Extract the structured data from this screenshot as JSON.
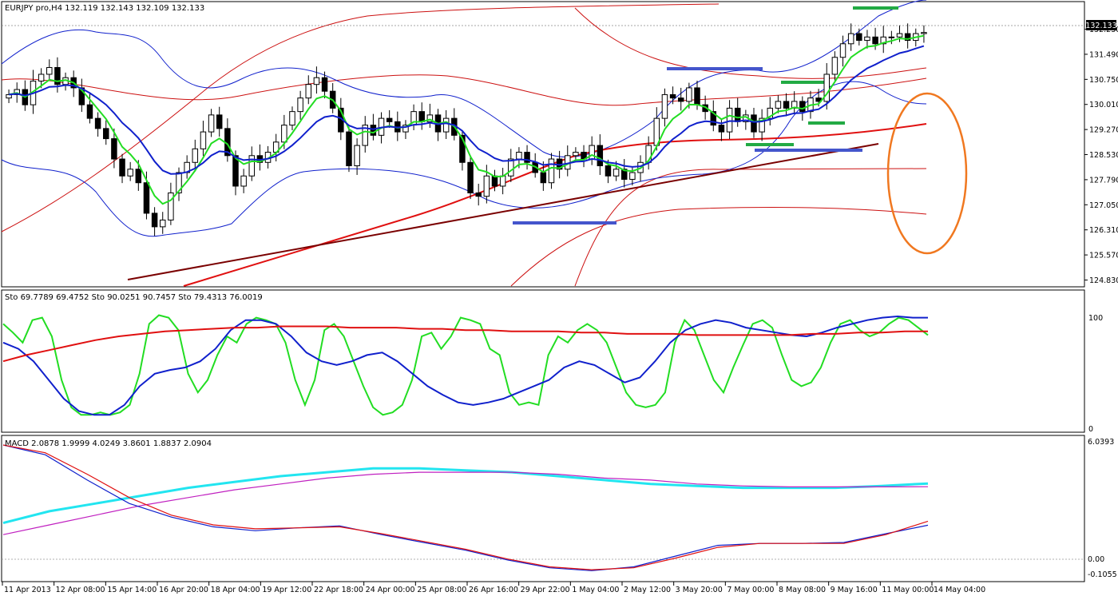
{
  "window": {
    "symbol_info": "EURJPY pro,H4  132.119 132.143 132.109 132.133"
  },
  "colors": {
    "bull_candle": "#ffffff",
    "bear_candle": "#000000",
    "ema_fast": "#22dd22",
    "ema_slow": "#1020cc",
    "ma_long": "#e01010",
    "bands_blue": "#1020cc",
    "bands_red": "#cc1010",
    "trendline": "#7a0000",
    "level_blue": "#4455cc",
    "level_green": "#22aa44",
    "ellipse": "#f07820",
    "macd_signal_cyan": "#22e5f0",
    "macd_main_magenta": "#c020c0"
  },
  "chart_data": [
    {
      "type": "candlestick",
      "title": "EURJPY pro,H4",
      "ohlc_current": {
        "open": 132.119,
        "high": 132.143,
        "low": 132.109,
        "close": 132.133
      },
      "price_axis_ticks": [
        "132.230",
        "131.490",
        "130.750",
        "130.010",
        "129.270",
        "128.530",
        "127.790",
        "127.050",
        "126.310",
        "125.570",
        "124.830"
      ],
      "current_price_label": "132.133",
      "ylim": [
        124.7,
        132.95
      ],
      "x_tick_labels": [
        "11 Apr 2013",
        "12 Apr 08:00",
        "15 Apr 14:00",
        "16 Apr 20:00",
        "18 Apr 04:00",
        "19 Apr 12:00",
        "22 Apr 18:00",
        "24 Apr 00:00",
        "25 Apr 08:00",
        "26 Apr 16:00",
        "29 Apr 22:00",
        "1 May 04:00",
        "2 May 12:00",
        "3 May 20:00",
        "7 May 00:00",
        "8 May 08:00",
        "9 May 16:00",
        "11 May 00:00",
        "14 May 04:00"
      ],
      "close_path": [
        130.3,
        130.45,
        130.0,
        130.7,
        130.9,
        131.1,
        130.6,
        130.8,
        130.5,
        130.0,
        129.6,
        129.3,
        129.0,
        128.4,
        127.9,
        128.1,
        127.7,
        126.8,
        126.4,
        126.6,
        127.4,
        128.0,
        128.3,
        128.7,
        129.2,
        129.7,
        129.3,
        128.5,
        127.6,
        127.9,
        128.5,
        128.3,
        128.6,
        128.9,
        129.4,
        129.8,
        130.2,
        130.6,
        130.8,
        130.4,
        129.9,
        129.2,
        128.2,
        128.8,
        129.4,
        129.1,
        129.6,
        129.5,
        129.2,
        129.4,
        129.8,
        129.5,
        129.7,
        129.2,
        129.6,
        129.1,
        128.3,
        127.4,
        127.3,
        127.9,
        127.6,
        127.9,
        128.4,
        128.6,
        128.3,
        128.0,
        127.7,
        128.4,
        128.1,
        128.5,
        128.6,
        128.4,
        128.8,
        128.2,
        127.9,
        128.1,
        127.8,
        128.0,
        128.3,
        128.8,
        129.6,
        130.3,
        130.2,
        130.1,
        130.5,
        130.0,
        129.8,
        129.4,
        129.2,
        129.9,
        129.5,
        129.7,
        129.2,
        129.6,
        129.9,
        130.1,
        129.9,
        130.1,
        129.8,
        130.2,
        130.1,
        130.9,
        131.4,
        131.8,
        132.1,
        131.9,
        132.0,
        131.8,
        132.0,
        132.0,
        132.1,
        131.9,
        132.1,
        132.133
      ],
      "annotations": [
        "support trendline",
        "blue horizontal levels",
        "green horizontal levels",
        "orange ellipse"
      ]
    },
    {
      "type": "line",
      "title": "Stochastic",
      "legend_text": "Sto 69.7789 69.4752  Sto 90.0251 90.7457  Sto 79.4313 76.0019",
      "ylim": [
        0,
        100
      ],
      "axis_labels": [
        "100",
        "0"
      ],
      "series": [
        {
          "color": "#22dd22",
          "values": [
            85,
            78,
            70,
            88,
            90,
            75,
            40,
            18,
            12,
            12,
            14,
            12,
            14,
            20,
            45,
            85,
            92,
            90,
            80,
            45,
            30,
            40,
            60,
            75,
            70,
            85,
            90,
            88,
            85,
            70,
            40,
            20,
            40,
            80,
            85,
            75,
            55,
            35,
            18,
            12,
            14,
            20,
            40,
            75,
            78,
            65,
            75,
            90,
            88,
            85,
            65,
            60,
            30,
            20,
            22,
            20,
            60,
            75,
            70,
            80,
            85,
            80,
            70,
            50,
            30,
            20,
            18,
            20,
            30,
            70,
            88,
            80,
            60,
            40,
            30,
            50,
            68,
            85,
            88,
            82,
            60,
            40,
            35,
            38,
            50,
            70,
            85,
            88,
            80,
            75,
            78,
            85,
            90,
            88,
            82,
            76
          ]
        },
        {
          "color": "#1020cc",
          "values": [
            70,
            65,
            55,
            40,
            25,
            15,
            12,
            12,
            20,
            35,
            45,
            48,
            50,
            55,
            65,
            80,
            88,
            88,
            85,
            75,
            62,
            55,
            52,
            55,
            60,
            62,
            55,
            45,
            35,
            28,
            22,
            20,
            22,
            25,
            30,
            35,
            40,
            50,
            55,
            52,
            45,
            38,
            42,
            55,
            70,
            80,
            85,
            88,
            86,
            82,
            80,
            78,
            76,
            75,
            78,
            82,
            85,
            88,
            90,
            91,
            90,
            90
          ]
        },
        {
          "color": "#e01010",
          "values": [
            55,
            60,
            64,
            68,
            72,
            75,
            77,
            79,
            80,
            81,
            82,
            82,
            83,
            83,
            83,
            82,
            82,
            82,
            81,
            81,
            80,
            80,
            79,
            79,
            79,
            78,
            78,
            77,
            77,
            77,
            76,
            76,
            76,
            76,
            76,
            77,
            77,
            78,
            78,
            79,
            79
          ]
        }
      ]
    },
    {
      "type": "line",
      "title": "MACD",
      "legend_text": "MACD 2.0878 1.9999 4.0249 3.8601 1.8837 2.0904",
      "axis_labels": [
        "6.0393",
        "0.00",
        "-0.1055"
      ],
      "ylim": [
        -0.6,
        6.0393
      ],
      "series": [
        {
          "color": "#22e5f0",
          "values": [
            2.0,
            2.6,
            3.0,
            3.4,
            3.8,
            4.1,
            4.4,
            4.6,
            4.8,
            4.8,
            4.7,
            4.6,
            4.4,
            4.2,
            4.0,
            3.9,
            3.8,
            3.8,
            3.8,
            3.9,
            4.0249
          ]
        },
        {
          "color": "#c020c0",
          "values": [
            1.4,
            1.9,
            2.4,
            2.9,
            3.3,
            3.7,
            4.0,
            4.3,
            4.5,
            4.6,
            4.6,
            4.6,
            4.5,
            4.3,
            4.2,
            4.0,
            3.9,
            3.85,
            3.85,
            3.85,
            3.8601
          ]
        },
        {
          "color": "#1020cc",
          "values": [
            6.0,
            5.5,
            4.2,
            3.0,
            2.3,
            1.8,
            1.6,
            1.75,
            1.85,
            1.4,
            1.0,
            0.6,
            0.1,
            -0.3,
            -0.45,
            -0.25,
            0.3,
            0.85,
            0.95,
            0.95,
            1.0,
            1.45,
            1.8837
          ]
        },
        {
          "color": "#e01010",
          "values": [
            6.0,
            5.6,
            4.5,
            3.3,
            2.4,
            1.9,
            1.7,
            1.75,
            1.8,
            1.45,
            1.05,
            0.65,
            0.15,
            -0.25,
            -0.4,
            -0.3,
            0.2,
            0.75,
            0.95,
            0.95,
            0.95,
            1.4,
            2.0904
          ]
        }
      ]
    }
  ]
}
